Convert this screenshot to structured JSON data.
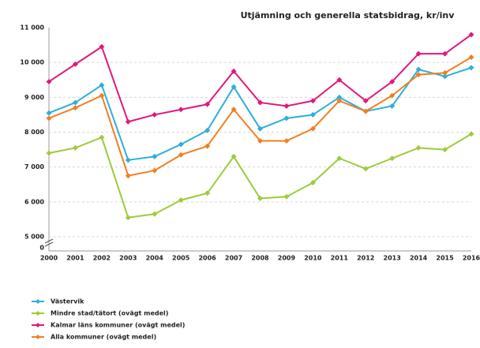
{
  "chart_data": {
    "type": "line",
    "title": "Utjämning och generella statsbidrag, kr/inv",
    "categories": [
      "2000",
      "2001",
      "2002",
      "2003",
      "2004",
      "2005",
      "2006",
      "2007",
      "2008",
      "2009",
      "2010",
      "2011",
      "2012",
      "2013",
      "2014",
      "2015",
      "2016"
    ],
    "series": [
      {
        "name": "Västervik",
        "color": "#2eaedc",
        "values": [
          8550,
          8850,
          9350,
          7200,
          7300,
          7650,
          8050,
          9300,
          8100,
          8400,
          8500,
          9000,
          8600,
          8750,
          9800,
          9600,
          9850
        ]
      },
      {
        "name": "Mindre stad/tätort (ovägt medel)",
        "color": "#9dcb3c",
        "values": [
          7400,
          7550,
          7850,
          5550,
          5650,
          6050,
          6250,
          7300,
          6100,
          6150,
          6550,
          7250,
          6950,
          7250,
          7550,
          7500,
          7950
        ]
      },
      {
        "name": "Kalmar läns kommuner (ovägt medel)",
        "color": "#e2187b",
        "values": [
          9450,
          9950,
          10450,
          8300,
          8500,
          8650,
          8800,
          9750,
          8850,
          8750,
          8900,
          9500,
          8900,
          9450,
          10250,
          10250,
          10800
        ]
      },
      {
        "name": "Alla kommuner (ovägt medel)",
        "color": "#f07f22",
        "values": [
          8400,
          8700,
          9050,
          6750,
          6900,
          7350,
          7600,
          8650,
          7750,
          7750,
          8100,
          8900,
          8600,
          9050,
          9650,
          9700,
          10150
        ]
      }
    ],
    "ylim": [
      5000,
      11000
    ],
    "yticks": [
      0,
      {
        "value": 5000,
        "label": "5 000"
      },
      {
        "value": 6000,
        "label": "6 000"
      },
      {
        "value": 7000,
        "label": "7 000"
      },
      {
        "value": 8000,
        "label": "8 000"
      },
      {
        "value": 9000,
        "label": "9 000"
      },
      {
        "value": 10000,
        "label": "10 000"
      },
      {
        "value": 11000,
        "label": "11 000"
      }
    ],
    "axis_break": true,
    "grid": true,
    "legend": "bottom-left"
  }
}
